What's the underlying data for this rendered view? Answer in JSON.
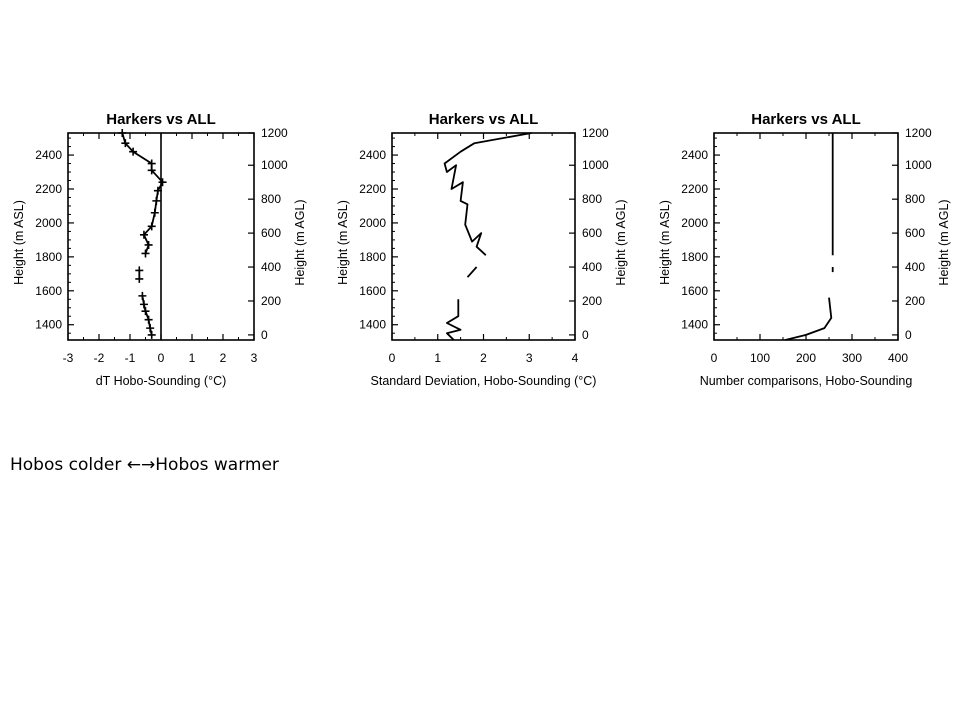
{
  "caption": {
    "left_text": "Hobos colder",
    "arrows": "←→",
    "right_text": "Hobos warmer"
  },
  "style": {
    "line_color": "#000000",
    "background": "#ffffff"
  },
  "chart_data": [
    {
      "type": "line",
      "title": "Harkers vs ALL",
      "xlabel": "dT Hobo-Sounding (°C)",
      "ylabel": "Height (m ASL)",
      "ylabel_right": "Height (m AGL)",
      "xlim": [
        -3,
        3
      ],
      "ylim": [
        1310,
        2530
      ],
      "xticks": [
        -3,
        -2,
        -1,
        0,
        1,
        2,
        3
      ],
      "yticks": [
        1400,
        1600,
        1800,
        2000,
        2200,
        2400
      ],
      "yticks_right": [
        {
          "label": "0",
          "asl": 1340
        },
        {
          "label": "200",
          "asl": 1540
        },
        {
          "label": "400",
          "asl": 1740
        },
        {
          "label": "600",
          "asl": 1940
        },
        {
          "label": "800",
          "asl": 2140
        },
        {
          "label": "1000",
          "asl": 2340
        },
        {
          "label": "1200",
          "asl": 2540
        }
      ],
      "reference_line_x": 0,
      "markers": "plus",
      "series": [
        {
          "segments": [
            [
              [
                -1.25,
                2530
              ],
              [
                -1.15,
                2470
              ],
              [
                -0.9,
                2420
              ],
              [
                -0.3,
                2350
              ],
              [
                -0.3,
                2310
              ],
              [
                0.05,
                2240
              ],
              [
                -0.1,
                2190
              ],
              [
                -0.15,
                2130
              ],
              [
                -0.2,
                2060
              ],
              [
                -0.3,
                1980
              ],
              [
                -0.55,
                1930
              ],
              [
                -0.4,
                1870
              ],
              [
                -0.5,
                1820
              ]
            ],
            [
              [
                -0.7,
                1720
              ],
              [
                -0.7,
                1670
              ]
            ],
            [
              [
                -0.6,
                1570
              ],
              [
                -0.55,
                1520
              ],
              [
                -0.5,
                1480
              ],
              [
                -0.4,
                1430
              ],
              [
                -0.35,
                1380
              ],
              [
                -0.3,
                1340
              ]
            ]
          ]
        }
      ]
    },
    {
      "type": "line",
      "title": "Harkers vs ALL",
      "xlabel": "Standard Deviation, Hobo-Sounding (°C)",
      "ylabel": "Height (m ASL)",
      "ylabel_right": "Height (m AGL)",
      "xlim": [
        0,
        4
      ],
      "ylim": [
        1310,
        2530
      ],
      "xticks": [
        0,
        1,
        2,
        3,
        4
      ],
      "yticks": [
        1400,
        1600,
        1800,
        2000,
        2200,
        2400
      ],
      "yticks_right": [
        {
          "label": "0",
          "asl": 1340
        },
        {
          "label": "200",
          "asl": 1540
        },
        {
          "label": "400",
          "asl": 1740
        },
        {
          "label": "600",
          "asl": 1940
        },
        {
          "label": "800",
          "asl": 2140
        },
        {
          "label": "1000",
          "asl": 2340
        },
        {
          "label": "1200",
          "asl": 2540
        }
      ],
      "series": [
        {
          "segments": [
            [
              [
                3.05,
                2530
              ],
              [
                1.8,
                2470
              ],
              [
                1.5,
                2420
              ],
              [
                1.15,
                2350
              ],
              [
                1.2,
                2300
              ],
              [
                1.4,
                2340
              ],
              [
                1.3,
                2200
              ],
              [
                1.55,
                2240
              ],
              [
                1.5,
                2130
              ],
              [
                1.65,
                2110
              ],
              [
                1.6,
                1990
              ],
              [
                1.75,
                1890
              ],
              [
                1.95,
                1940
              ],
              [
                1.85,
                1860
              ],
              [
                2.05,
                1810
              ]
            ],
            [
              [
                1.85,
                1740
              ],
              [
                1.65,
                1680
              ]
            ],
            [
              [
                1.45,
                1550
              ],
              [
                1.45,
                1450
              ],
              [
                1.2,
                1410
              ],
              [
                1.5,
                1370
              ],
              [
                1.2,
                1350
              ],
              [
                1.35,
                1310
              ]
            ]
          ]
        }
      ]
    },
    {
      "type": "line",
      "title": "Harkers vs ALL",
      "xlabel": "Number comparisons, Hobo-Sounding",
      "ylabel": "Height (m ASL)",
      "ylabel_right": "Height (m AGL)",
      "xlim": [
        0,
        400
      ],
      "ylim": [
        1310,
        2530
      ],
      "xticks": [
        0,
        100,
        200,
        300,
        400
      ],
      "yticks": [
        1400,
        1600,
        1800,
        2000,
        2200,
        2400
      ],
      "yticks_right": [
        {
          "label": "0",
          "asl": 1340
        },
        {
          "label": "200",
          "asl": 1540
        },
        {
          "label": "400",
          "asl": 1740
        },
        {
          "label": "600",
          "asl": 1940
        },
        {
          "label": "800",
          "asl": 2140
        },
        {
          "label": "1000",
          "asl": 2340
        },
        {
          "label": "1200",
          "asl": 2540
        }
      ],
      "series": [
        {
          "segments": [
            [
              [
                258,
                2530
              ],
              [
                258,
                1810
              ]
            ],
            [
              [
                258,
                1740
              ],
              [
                258,
                1710
              ]
            ],
            [
              [
                250,
                1560
              ],
              [
                255,
                1440
              ],
              [
                240,
                1380
              ],
              [
                200,
                1340
              ],
              [
                155,
                1310
              ]
            ]
          ]
        }
      ]
    }
  ]
}
